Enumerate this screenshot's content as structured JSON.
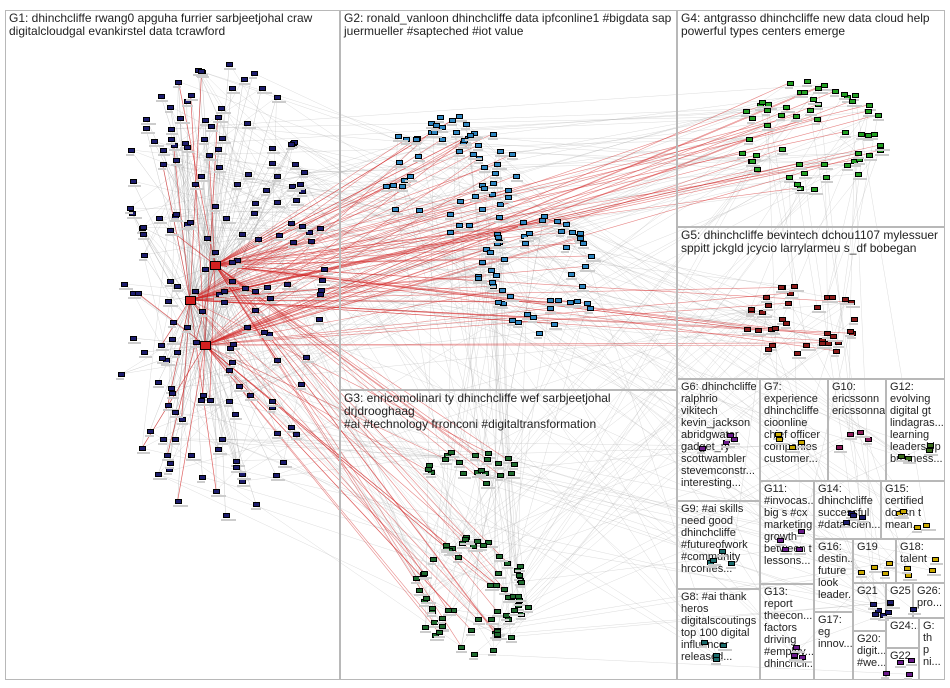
{
  "groups": [
    {
      "id": "G1",
      "label": "G1: dhinchcliffe rwang0 apguha furrier sarbjeetjohal craw\ndigitalcloudgal evankirstel data tcrawford",
      "color": "#1c1c6e"
    },
    {
      "id": "G2",
      "label": "G2: ronald_vanloon dhinchcliffe data ipfconline1 #bigdata sap\njuermueller #sapteched #iot value",
      "color": "#2e86c1"
    },
    {
      "id": "G4",
      "label": "G4: antgrasso dhinchcliffe new data cloud help\npowerful types centers emerge",
      "color": "#22a022"
    },
    {
      "id": "G5",
      "label": "G5: dhinchcliffe bevintech dchou1107 mylessuer\nsppitt jckgld jcycio larrylarmeu s_df bobegan",
      "color": "#8b1a1a"
    },
    {
      "id": "G3",
      "label": "G3: enricomolinari ty dhinchcliffe wef sarbjeetjohal drjdrooghaag\n#ai #technology frronconi #digitaltransformation",
      "color": "#1e6b2e"
    },
    {
      "id": "G6",
      "label": "G6: dhinchcliffe\nralphrio\nvikitech\nkevin_jackson\nabridgwater\ngadget_ry\nscottwambler\nstevemconstr...\ninteresting...",
      "color": "#6a1a8b"
    },
    {
      "id": "G7",
      "label": "G7:\nexperience\ndhinchcliffe\ncioonline\nchief officer\ncompanies\ncustomer...",
      "color": "#c9a800"
    },
    {
      "id": "G10",
      "label": "G10:\nericssonn\nericssonna",
      "color": "#8b1a5a"
    },
    {
      "id": "G12",
      "label": "G12:\nevolving\ndigital gt\nlindagras...\nlearning\nleadership\nbusiness...",
      "color": "#3a6e1a"
    },
    {
      "id": "G9",
      "label": "G9: #ai skills\nneed good\ndhinchcliffe\n#futureofwork\n#community\nhrconfes...",
      "color": "#1a6b6b"
    },
    {
      "id": "G11",
      "label": "G11: #invocas...\nbig s #cx\nmarketing\ngrowth\nbetween t\nlessons...",
      "color": "#6a1a8b"
    },
    {
      "id": "G14",
      "label": "G14:\ndhinchcliffe\nsuccessful\n#datascien...",
      "color": "#1c1c6e"
    },
    {
      "id": "G15",
      "label": "G15:\ncertified\ndoesn t\nmean...",
      "color": "#c9a800"
    },
    {
      "id": "G16",
      "label": "G16:\ndestin...\nfuture\nlook\nleader...",
      "color": "#8b1a1a"
    },
    {
      "id": "G19",
      "label": "G19",
      "color": "#c9a800"
    },
    {
      "id": "G18",
      "label": "G18:\ntalent",
      "color": "#c9a800"
    },
    {
      "id": "G8",
      "label": "G8: #ai thank\nheros\ndigitalscoutings\ntop 100 digital\ninfluencer\nreleased...",
      "color": "#1a6b6b"
    },
    {
      "id": "G13",
      "label": "G13:\nreport\ntheecon...\nfactors\ndriving\n#employ...\ndhinchcli...",
      "color": "#6a1a8b"
    },
    {
      "id": "G17",
      "label": "G17:\neg\ninnov...",
      "color": "#1a6b6b"
    },
    {
      "id": "G21",
      "label": "G21",
      "color": "#1c1c6e"
    },
    {
      "id": "G25",
      "label": "G25",
      "color": "#1c1c6e"
    },
    {
      "id": "G26",
      "label": "G26:\npro...",
      "color": "#8b1a1a"
    },
    {
      "id": "G20",
      "label": "G20:\ndigit...\n#we...",
      "color": "#1c1c6e"
    },
    {
      "id": "G24",
      "label": "G24:...",
      "color": "#1c1c6e"
    },
    {
      "id": "G23",
      "label": "G:\nth\np\nni...",
      "color": "#1c1c6e"
    },
    {
      "id": "G22",
      "label": "G22",
      "color": "#6a1a8b"
    }
  ],
  "colors": {
    "edge_gray": "#9a9a9a",
    "edge_red": "#d21f1f",
    "border": "#b8b8b8"
  }
}
